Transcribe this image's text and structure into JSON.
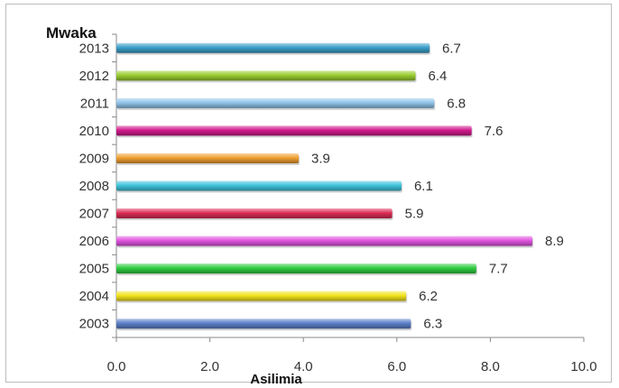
{
  "chart_data": {
    "type": "bar",
    "orientation": "horizontal",
    "ylabel": "Mwaka",
    "xlabel": "Asilimia",
    "categories": [
      "2003",
      "2004",
      "2005",
      "2006",
      "2007",
      "2008",
      "2009",
      "2010",
      "2011",
      "2012",
      "2013"
    ],
    "values": [
      6.3,
      6.2,
      7.7,
      8.9,
      5.9,
      6.1,
      3.9,
      7.6,
      6.8,
      6.4,
      6.7
    ],
    "value_labels": [
      "6.3",
      "6.2",
      "7.7",
      "8.9",
      "5.9",
      "6.1",
      "3.9",
      "7.6",
      "6.8",
      "6.4",
      "6.7"
    ],
    "colors": [
      "#5b7fc9",
      "#f2e21c",
      "#2ecc40",
      "#e055e0",
      "#dc2d55",
      "#3fc4dc",
      "#f0a030",
      "#d01a8c",
      "#8fc4ea",
      "#9acd32",
      "#3a9ec8"
    ],
    "xlim": [
      0,
      10
    ],
    "xticks": [
      "0.0",
      "2.0",
      "4.0",
      "6.0",
      "8.0",
      "10.0"
    ],
    "xtick_values": [
      0,
      2,
      4,
      6,
      8,
      10
    ],
    "grid": false,
    "legend": "none"
  }
}
